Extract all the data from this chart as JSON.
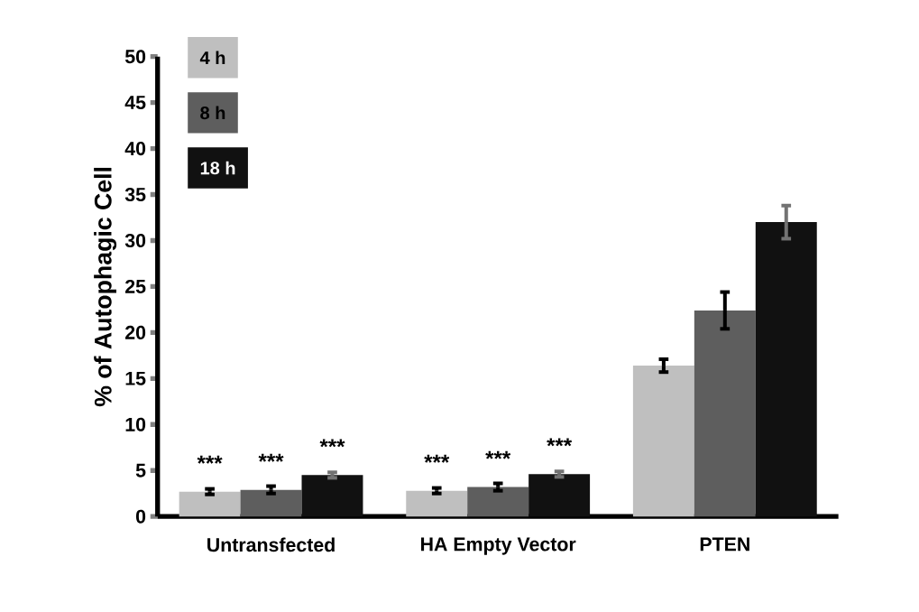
{
  "chart_data": {
    "type": "bar",
    "ylabel": "% of Autophagic Cell",
    "categories": [
      "Untransfected",
      "HA Empty Vector",
      "PTEN"
    ],
    "series": [
      {
        "name": "4 h",
        "color": "#bfbfbf",
        "values": [
          2.7,
          2.8,
          16.4
        ],
        "errors": [
          0.3,
          0.3,
          0.7
        ],
        "value_labels": [
          "***",
          "***",
          null
        ]
      },
      {
        "name": "8 h",
        "color": "#5e5e5e",
        "values": [
          2.9,
          3.2,
          22.4
        ],
        "errors": [
          0.4,
          0.4,
          2.0
        ],
        "value_labels": [
          "***",
          "***",
          null
        ]
      },
      {
        "name": "18 h",
        "color": "#111111",
        "values": [
          4.5,
          4.6,
          32.0
        ],
        "errors": [
          0.3,
          0.3,
          1.8
        ],
        "value_labels": [
          "***",
          "***",
          null
        ]
      }
    ],
    "ylim": [
      0,
      50
    ],
    "yticks": [
      0,
      5,
      10,
      15,
      20,
      25,
      30,
      35,
      40,
      45,
      50
    ],
    "legend": "top left",
    "grid": false
  }
}
